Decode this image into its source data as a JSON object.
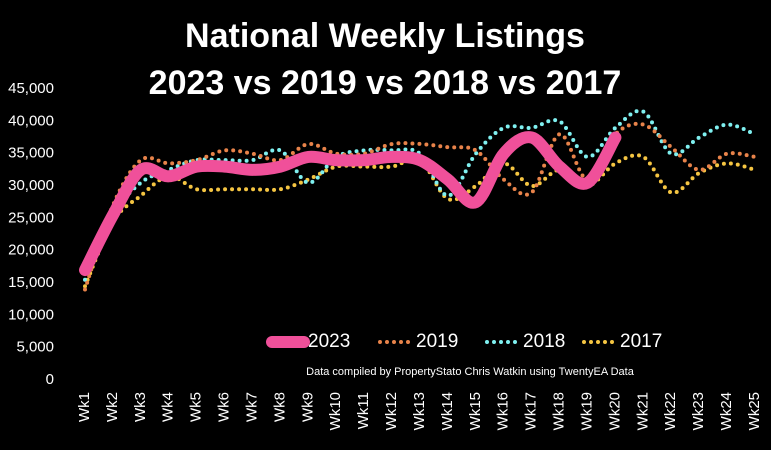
{
  "chart_data": {
    "type": "line",
    "title": "National Weekly Listings",
    "subtitle": "2023 vs 2019 vs 2018 vs 2017",
    "annotation": "Data compiled by PropertyStato Chris Watkin using TwentyEA Data",
    "categories": [
      "Wk1",
      "Wk2",
      "Wk3",
      "Wk4",
      "Wk5",
      "Wk6",
      "Wk7",
      "Wk8",
      "Wk9",
      "Wk10",
      "Wk11",
      "Wk12",
      "Wk13",
      "Wk14",
      "Wk15",
      "Wk16",
      "Wk17",
      "Wk18",
      "Wk19",
      "Wk20",
      "Wk21",
      "Wk22",
      "Wk23",
      "Wk24",
      "Wk25"
    ],
    "ylim": [
      0,
      45000
    ],
    "yticks": [
      0,
      {
        "value": 5000,
        "label": "5,000"
      },
      {
        "value": 10000,
        "label": "10,000"
      },
      {
        "value": 15000,
        "label": "15,000"
      },
      {
        "value": 20000,
        "label": "20,000"
      },
      {
        "value": 25000,
        "label": "25,000"
      },
      {
        "value": 30000,
        "label": "30,000"
      },
      {
        "value": 35000,
        "label": "35,000"
      },
      {
        "value": 40000,
        "label": "40,000"
      },
      {
        "value": 45000,
        "label": "45,000"
      }
    ],
    "grid": false,
    "series": [
      {
        "name": "2023",
        "color": "#f0509a",
        "style": "solid",
        "values": [
          17000,
          25500,
          32500,
          31500,
          33000,
          33000,
          32500,
          33000,
          34500,
          34000,
          34000,
          34500,
          34000,
          31000,
          27500,
          35000,
          37500,
          33000,
          30500,
          37500,
          null,
          null,
          null,
          null,
          null
        ]
      },
      {
        "name": "2019",
        "color": "#e8834a",
        "style": "dotted",
        "values": [
          14000,
          27000,
          34000,
          33500,
          34000,
          35500,
          35000,
          34000,
          36500,
          35000,
          35000,
          36500,
          36500,
          36000,
          35500,
          31000,
          29000,
          38000,
          31000,
          38000,
          39500,
          36000,
          32500,
          35000,
          34500
        ]
      },
      {
        "name": "2018",
        "color": "#7ff0f0",
        "style": "dotted",
        "values": [
          15500,
          25500,
          30500,
          32500,
          34000,
          34000,
          34000,
          35500,
          30500,
          34500,
          35500,
          35500,
          35000,
          28500,
          35000,
          39000,
          39000,
          40000,
          34500,
          39000,
          41500,
          35000,
          37500,
          39500,
          38000
        ]
      },
      {
        "name": "2017",
        "color": "#f5c542",
        "style": "dotted",
        "values": [
          14500,
          24500,
          28500,
          31500,
          29500,
          29500,
          29500,
          29500,
          31000,
          33000,
          33000,
          33000,
          34000,
          28000,
          30000,
          33500,
          30000,
          32500,
          30000,
          33500,
          34500,
          29000,
          32000,
          33500,
          32500
        ]
      }
    ]
  }
}
